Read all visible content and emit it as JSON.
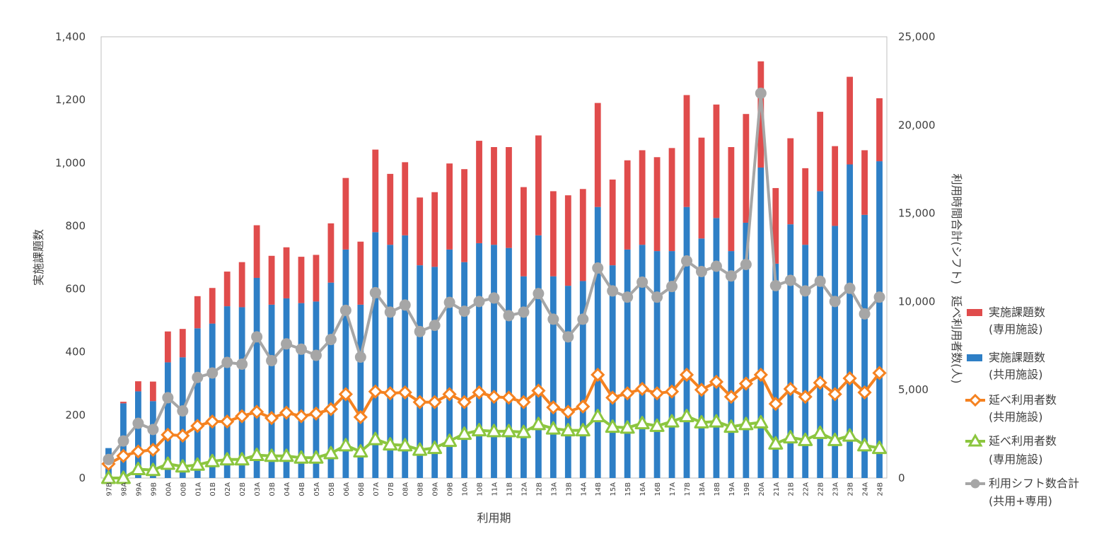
{
  "chart_data": {
    "type": "bar",
    "stacked": true,
    "xlabel": "利用期",
    "ylabel_left": "実施課題数",
    "ylabel_right": "利用時間合計(シフト)　延べ利用者数(人)",
    "ylim_left": [
      0,
      1400
    ],
    "ylim_right": [
      0,
      25000
    ],
    "yticks_left": [
      "0",
      "200",
      "400",
      "600",
      "800",
      "1,000",
      "1,200",
      "1,400"
    ],
    "yticks_right": [
      "0",
      "5,000",
      "10,000",
      "15,000",
      "20,000",
      "25,000"
    ],
    "grid": false,
    "legend_position": "right",
    "categories": [
      "97B",
      "98A",
      "99A",
      "99B",
      "00A",
      "00B",
      "01A",
      "01B",
      "02A",
      "02B",
      "03A",
      "03B",
      "04A",
      "04B",
      "05A",
      "05B",
      "06A",
      "06B",
      "07A",
      "07B",
      "08A",
      "08B",
      "09A",
      "09B",
      "10A",
      "10B",
      "11A",
      "11B",
      "12A",
      "12B",
      "13A",
      "13B",
      "14A",
      "14B",
      "15A",
      "15B",
      "16A",
      "16B",
      "17A",
      "17B",
      "18A",
      "18B",
      "19A",
      "19B",
      "20A",
      "21A",
      "21B",
      "22A",
      "22B",
      "23A",
      "23B",
      "24A",
      "24B"
    ],
    "series": [
      {
        "name": "実施課題数(共用施設)",
        "axis": "left",
        "kind": "bar",
        "color": "#2e7fc6",
        "values": [
          95,
          237,
          275,
          244,
          367,
          383,
          475,
          490,
          545,
          542,
          635,
          550,
          570,
          555,
          560,
          620,
          725,
          550,
          780,
          740,
          770,
          675,
          670,
          725,
          685,
          745,
          740,
          730,
          640,
          770,
          640,
          610,
          625,
          860,
          675,
          725,
          740,
          720,
          720,
          860,
          760,
          825,
          720,
          810,
          985,
          680,
          805,
          740,
          910,
          800,
          995,
          835,
          1005
        ]
      },
      {
        "name": "実施課題数(専用施設)",
        "axis": "left",
        "kind": "bar",
        "color": "#e04c4c",
        "values": [
          0,
          5,
          32,
          62,
          98,
          90,
          102,
          113,
          110,
          143,
          167,
          155,
          162,
          147,
          148,
          188,
          227,
          200,
          262,
          225,
          232,
          215,
          237,
          273,
          295,
          325,
          310,
          320,
          283,
          317,
          270,
          287,
          292,
          330,
          272,
          283,
          300,
          298,
          327,
          355,
          320,
          360,
          330,
          345,
          337,
          240,
          273,
          243,
          252,
          253,
          278,
          205,
          200
        ]
      },
      {
        "name": "延べ利用者数(共用施設)",
        "axis": "right",
        "kind": "line",
        "color": "#f58220",
        "values": [
          800,
          1250,
          1500,
          1600,
          2450,
          2400,
          2950,
          3200,
          3200,
          3500,
          3750,
          3400,
          3700,
          3500,
          3650,
          3900,
          4750,
          3450,
          4900,
          4800,
          4850,
          4300,
          4300,
          4750,
          4300,
          4850,
          4600,
          4550,
          4300,
          4950,
          4000,
          3750,
          4050,
          5850,
          4550,
          4800,
          5050,
          4800,
          4900,
          5850,
          5000,
          5450,
          4600,
          5350,
          5850,
          4200,
          5050,
          4600,
          5400,
          4750,
          5650,
          4850,
          5950
        ]
      },
      {
        "name": "延べ利用者数(専用施設)",
        "axis": "right",
        "kind": "line",
        "color": "#8cc63f",
        "values": [
          0,
          0,
          500,
          450,
          800,
          650,
          750,
          950,
          1050,
          1050,
          1300,
          1250,
          1250,
          1150,
          1150,
          1400,
          1850,
          1500,
          2200,
          1900,
          1850,
          1600,
          1700,
          2100,
          2500,
          2700,
          2650,
          2650,
          2600,
          3050,
          2800,
          2700,
          2700,
          3500,
          2900,
          2850,
          3100,
          2950,
          3200,
          3500,
          3150,
          3200,
          2900,
          3050,
          3150,
          1950,
          2300,
          2150,
          2550,
          2150,
          2400,
          1850,
          1700
        ]
      },
      {
        "name": "利用シフト数合計(共用+専用)",
        "axis": "right",
        "kind": "line",
        "color": "#a6a6a6",
        "values": [
          1050,
          2100,
          3100,
          2750,
          4550,
          3800,
          5700,
          5950,
          6550,
          6450,
          8000,
          6650,
          7600,
          7300,
          6950,
          7850,
          9500,
          6850,
          10500,
          9400,
          9800,
          8300,
          8650,
          9950,
          9450,
          10000,
          10200,
          9200,
          9400,
          10450,
          9000,
          8000,
          9000,
          11900,
          10600,
          10250,
          11100,
          10250,
          10850,
          12300,
          11700,
          12000,
          11450,
          12100,
          21800,
          10900,
          11200,
          10600,
          11150,
          10000,
          10750,
          9300,
          10250
        ]
      }
    ]
  }
}
